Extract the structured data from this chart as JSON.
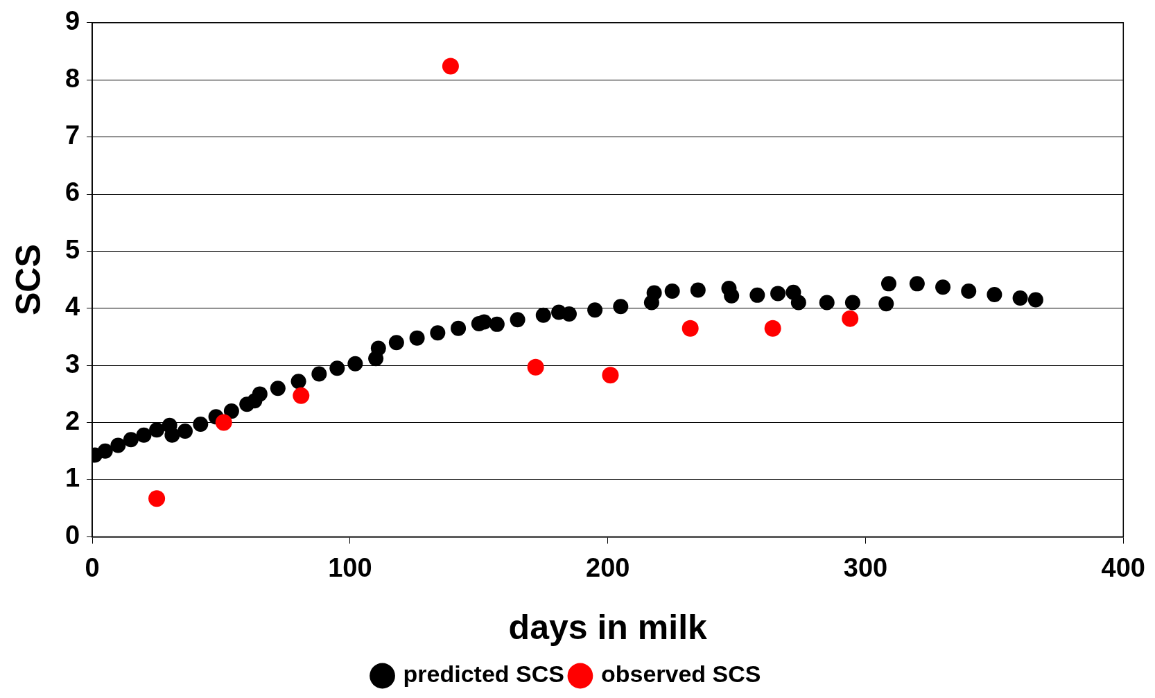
{
  "chart_data": {
    "type": "scatter",
    "xlabel": "days in milk",
    "ylabel": "SCS",
    "xlim": [
      0,
      400
    ],
    "xticks": [
      0,
      100,
      200,
      300,
      400
    ],
    "ylim": [
      0,
      9
    ],
    "yticks": [
      0,
      1,
      2,
      3,
      4,
      5,
      6,
      7,
      8,
      9
    ],
    "grid": "y",
    "legend": "bottom",
    "marker": "circle",
    "series": [
      {
        "name": "predicted SCS",
        "color": "#000000",
        "x": [
          1,
          5,
          10,
          15,
          20,
          25,
          30,
          31,
          36,
          42,
          48,
          54,
          60,
          63,
          65,
          72,
          80,
          88,
          95,
          102,
          110,
          111,
          118,
          126,
          134,
          142,
          150,
          152,
          157,
          165,
          175,
          181,
          185,
          195,
          205,
          217,
          218,
          225,
          235,
          247,
          248,
          258,
          266,
          272,
          274,
          285,
          295,
          308,
          309,
          320,
          330,
          340,
          350,
          360,
          366
        ],
        "values": [
          1.43,
          1.5,
          1.6,
          1.7,
          1.78,
          1.87,
          1.95,
          1.78,
          1.85,
          1.97,
          2.1,
          2.2,
          2.32,
          2.38,
          2.5,
          2.6,
          2.72,
          2.85,
          2.95,
          3.03,
          3.12,
          3.3,
          3.4,
          3.48,
          3.57,
          3.65,
          3.73,
          3.76,
          3.72,
          3.8,
          3.88,
          3.93,
          3.9,
          3.97,
          4.03,
          4.1,
          4.27,
          4.3,
          4.32,
          4.35,
          4.22,
          4.23,
          4.26,
          4.28,
          4.1,
          4.1,
          4.1,
          4.08,
          4.43,
          4.43,
          4.37,
          4.3,
          4.24,
          4.18,
          4.15
        ]
      },
      {
        "name": "observed SCS",
        "color": "#ff0000",
        "x": [
          25,
          51,
          81,
          139,
          172,
          201,
          232,
          264,
          294
        ],
        "values": [
          0.67,
          2.0,
          2.47,
          8.24,
          2.97,
          2.83,
          3.65,
          3.65,
          3.82
        ]
      }
    ]
  }
}
